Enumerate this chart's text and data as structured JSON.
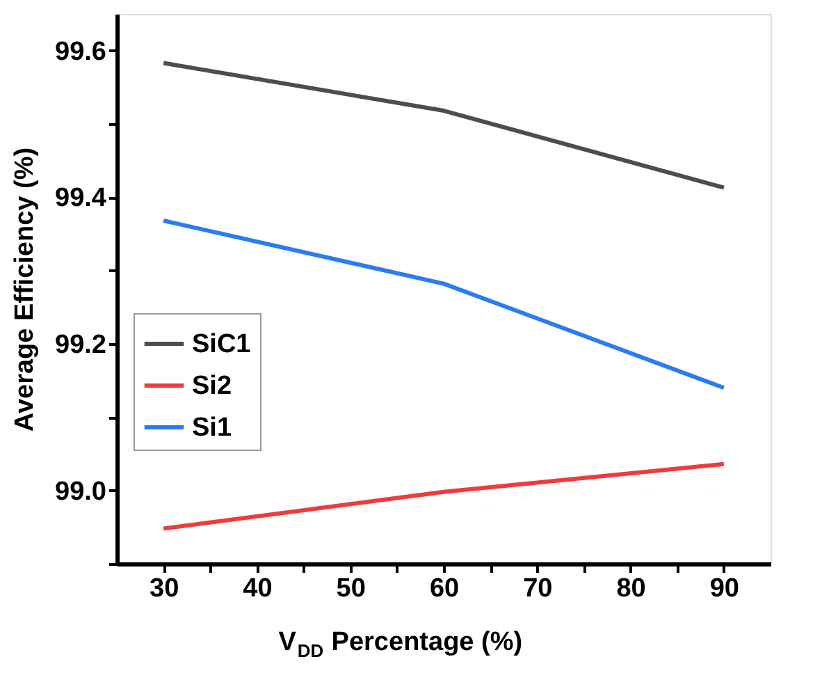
{
  "chart_data": {
    "type": "line",
    "xlabel": "V$_{DD}$ Percentage (%)",
    "ylabel": "Average Efficiency (%)",
    "x": [
      30,
      60,
      90
    ],
    "series": [
      {
        "name": "SiC1",
        "color": "#4d4d4d",
        "values": [
          99.583,
          99.518,
          99.413
        ]
      },
      {
        "name": "Si2",
        "color": "#ef3b3b",
        "values": [
          98.948,
          98.998,
          99.036
        ]
      },
      {
        "name": "Si1",
        "color": "#2a7cf0",
        "values": [
          99.368,
          99.282,
          99.14
        ]
      }
    ],
    "xlim": [
      25,
      95
    ],
    "xticks": [
      30,
      {
        "value": 35,
        "label": null
      },
      40,
      {
        "value": 45,
        "label": null
      },
      50,
      {
        "value": 55,
        "label": null
      },
      60,
      {
        "value": 65,
        "label": null
      },
      70,
      {
        "value": 75,
        "label": null
      },
      80,
      {
        "value": 85,
        "label": null
      },
      90
    ],
    "ylim": [
      98.9,
      99.65
    ],
    "yticks": [
      {
        "value": 98.9,
        "label": null
      },
      {
        "value": 99.0,
        "label": "99.0"
      },
      {
        "value": 99.1,
        "label": null
      },
      {
        "value": 99.2,
        "label": "99.2"
      },
      {
        "value": 99.3,
        "label": null
      },
      {
        "value": 99.4,
        "label": "99.4"
      },
      {
        "value": 99.5,
        "label": null
      },
      {
        "value": 99.6,
        "label": "99.6"
      }
    ],
    "legend": "left",
    "grid": false,
    "marker": "none",
    "line_style": "solid"
  }
}
